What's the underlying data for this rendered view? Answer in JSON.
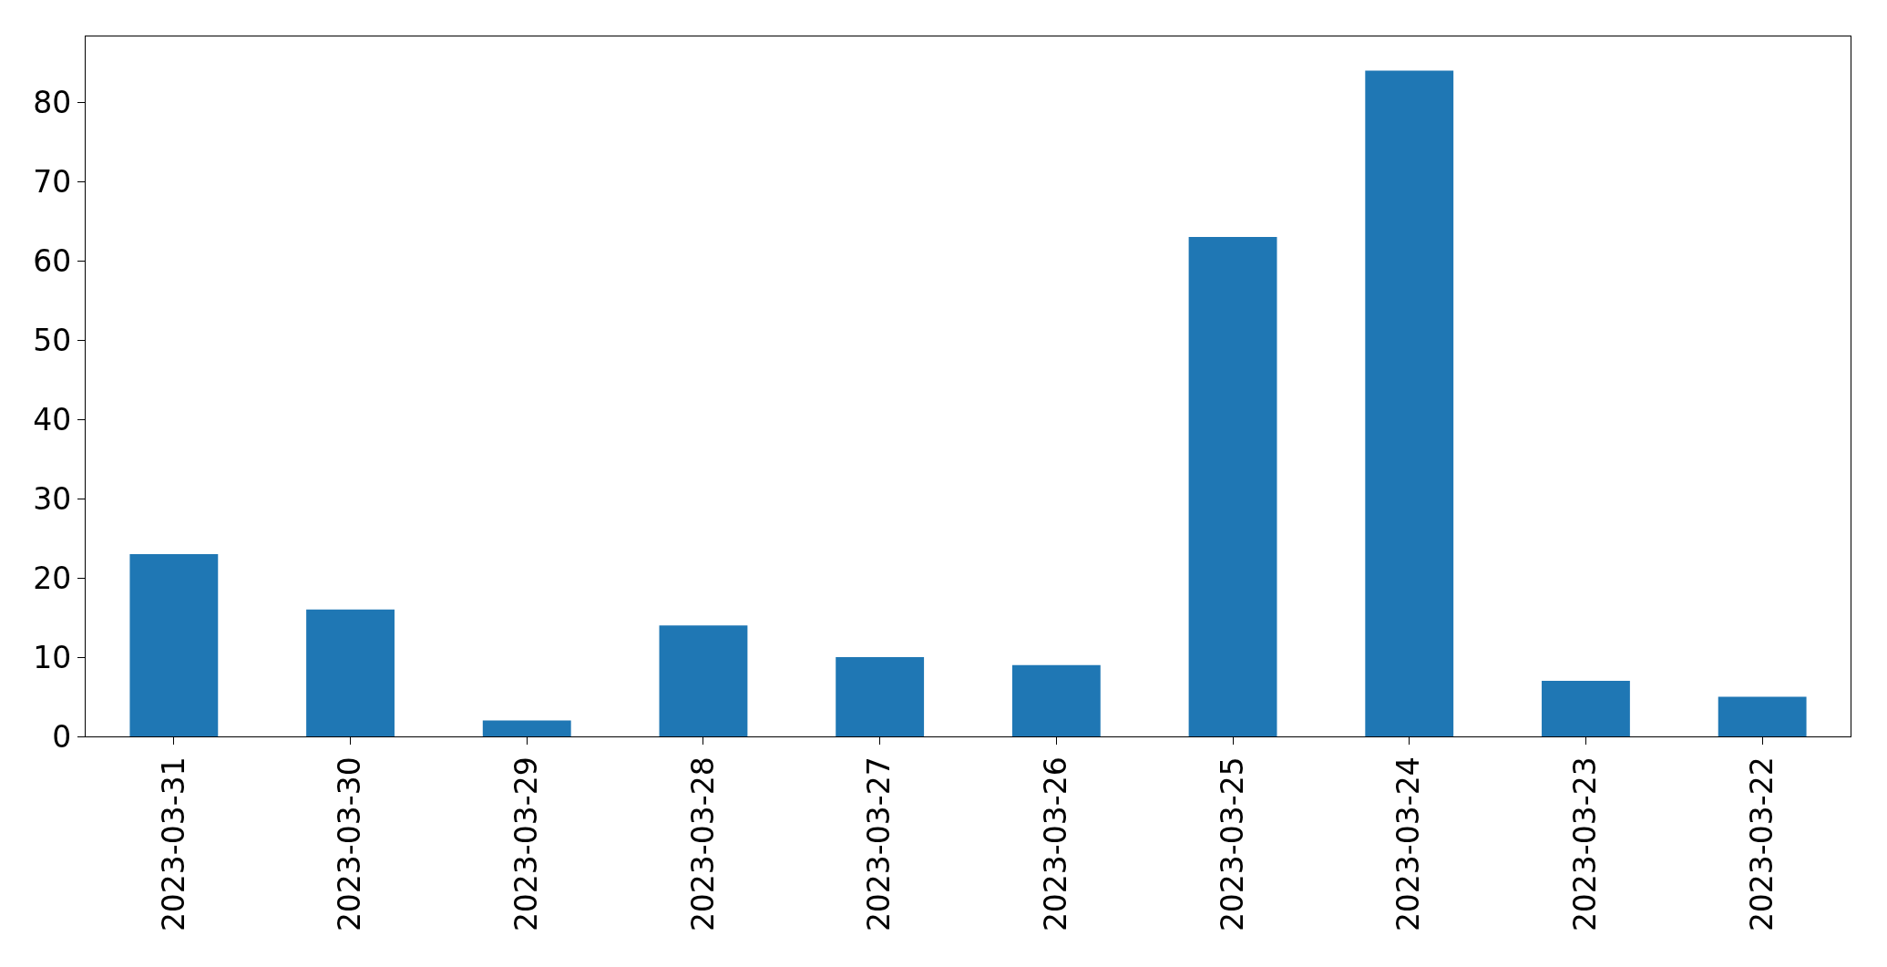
{
  "chart_data": {
    "type": "bar",
    "categories": [
      "2023-03-31",
      "2023-03-30",
      "2023-03-29",
      "2023-03-28",
      "2023-03-27",
      "2023-03-26",
      "2023-03-25",
      "2023-03-24",
      "2023-03-23",
      "2023-03-22"
    ],
    "values": [
      23,
      16,
      2,
      14,
      10,
      9,
      63,
      84,
      7,
      5
    ],
    "color": "#1f77b4",
    "ylim": [
      0,
      88.3
    ],
    "yticks": [
      0,
      10,
      20,
      30,
      40,
      50,
      60,
      70,
      80
    ],
    "grid": false
  }
}
